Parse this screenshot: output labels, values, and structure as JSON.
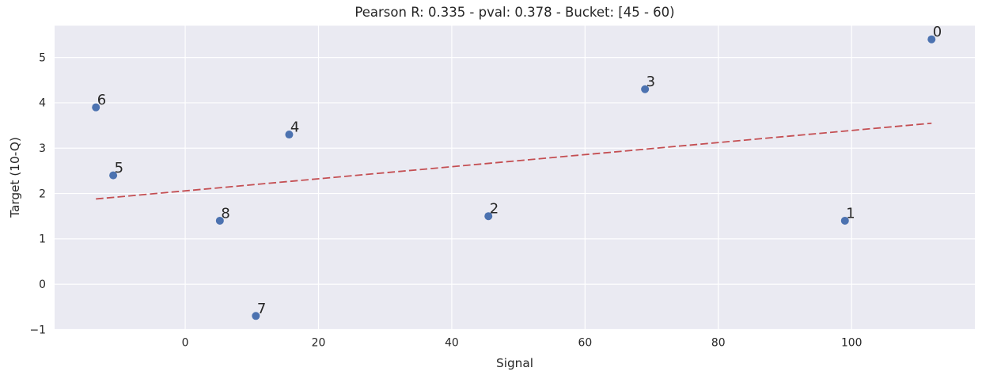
{
  "chart_data": {
    "type": "scatter",
    "title": "Pearson R: 0.335 - pval: 0.378 - Bucket: [45 - 60)",
    "xlabel": "Signal",
    "ylabel": "Target (10-Q)",
    "stats": {
      "pearson_r": 0.335,
      "pval": 0.378,
      "bucket": "[45 - 60)"
    },
    "xlim": [
      -19.6,
      118.5
    ],
    "ylim": [
      -1.0,
      5.7
    ],
    "xticks": [
      0,
      20,
      40,
      60,
      80,
      100
    ],
    "yticks": [
      -1,
      0,
      1,
      2,
      3,
      4,
      5
    ],
    "grid": true,
    "legend": false,
    "points": [
      {
        "label": "0",
        "x": 112.0,
        "y": 5.4
      },
      {
        "label": "1",
        "x": 99.0,
        "y": 1.4
      },
      {
        "label": "2",
        "x": 45.5,
        "y": 1.5
      },
      {
        "label": "3",
        "x": 69.0,
        "y": 4.3
      },
      {
        "label": "4",
        "x": 15.6,
        "y": 3.3
      },
      {
        "label": "5",
        "x": -10.8,
        "y": 2.4
      },
      {
        "label": "6",
        "x": -13.4,
        "y": 3.9
      },
      {
        "label": "7",
        "x": 10.6,
        "y": -0.7
      },
      {
        "label": "8",
        "x": 5.2,
        "y": 1.4
      }
    ],
    "trend_line": {
      "style": "dashed",
      "x1": -13.4,
      "y1": 1.88,
      "x2": 112.0,
      "y2": 3.55
    },
    "colors": {
      "point": "#4C72B0",
      "trend": "#C44E52",
      "plot_bg": "#EAEAF2",
      "grid": "#FFFFFF",
      "text": "#262626"
    }
  }
}
